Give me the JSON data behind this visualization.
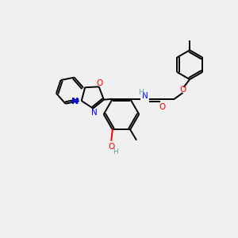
{
  "background_color": "#f0f0f0",
  "bond_color": "#000000",
  "N_color": "#0000ff",
  "O_color": "#ff0000",
  "H_color": "#5f9ea0",
  "lw": 1.4,
  "figsize": [
    3.0,
    3.0
  ],
  "dpi": 100,
  "xlim": [
    0,
    10
  ],
  "ylim": [
    0,
    10
  ]
}
